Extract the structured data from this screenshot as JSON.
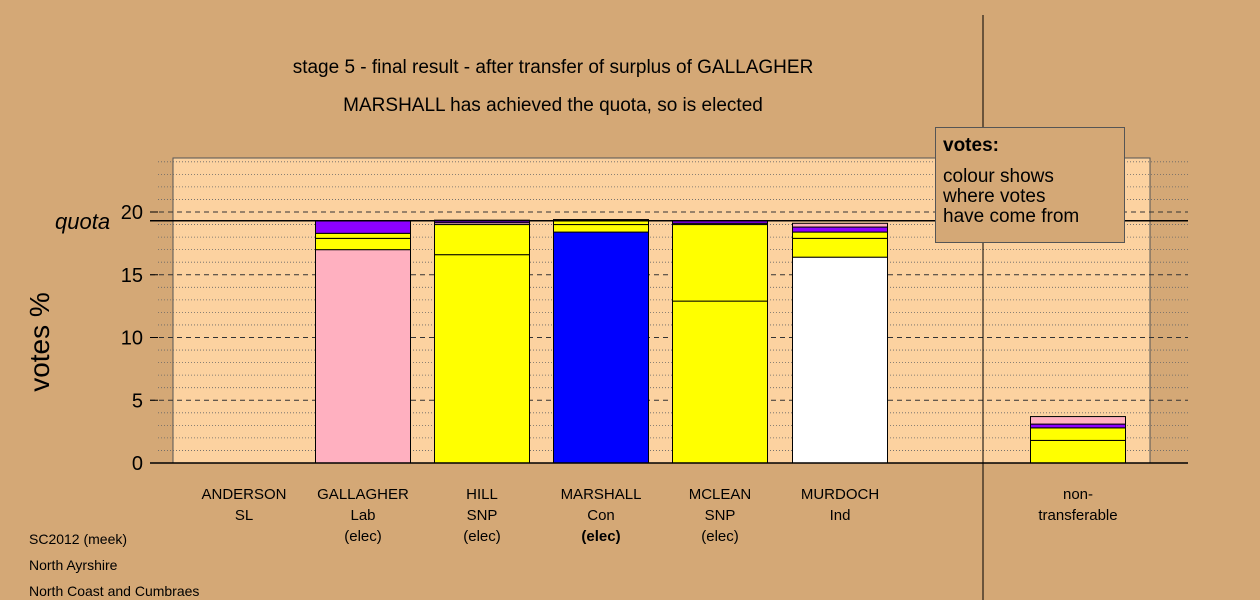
{
  "title_line1": "stage 5 - final result - after transfer of surplus of GALLAGHER",
  "title_line2": "MARSHALL has achieved the quota, so is elected",
  "ylabel": "votes %",
  "quota_label": "quota",
  "legend": {
    "title": "votes:",
    "line1": "colour shows",
    "line2": "where votes",
    "line3": "have come from"
  },
  "footer": [
    "SC2012 (meek)",
    "North Ayrshire",
    "North Coast and Cumbraes"
  ],
  "colors": {
    "background": "#d4a876",
    "plot_background": "#fcd2a0",
    "Lab": "#ffb0c0",
    "SNP": "#ffff00",
    "Con": "#0000ff",
    "Ind": "#ffffff",
    "SL": "#8c00ff"
  },
  "chart_data": {
    "type": "bar",
    "stacked": true,
    "ylim": [
      0,
      24
    ],
    "yticks": [
      0,
      5,
      10,
      15,
      20
    ],
    "quota": 19.3,
    "grid": true,
    "legend_position": "top-right",
    "candidates": [
      {
        "name": "ANDERSON",
        "party": "SL",
        "status": "",
        "segments": []
      },
      {
        "name": "GALLAGHER",
        "party": "Lab",
        "status": "(elec)",
        "segments": [
          {
            "value": 17.0,
            "color": "#ffb0c0"
          },
          {
            "value": 0.9,
            "color": "#ffff00"
          },
          {
            "value": 0.4,
            "color": "#ffff00"
          },
          {
            "value": 1.0,
            "color": "#8c00ff"
          }
        ]
      },
      {
        "name": "HILL",
        "party": "SNP",
        "status": "(elec)",
        "segments": [
          {
            "value": 16.6,
            "color": "#ffff00"
          },
          {
            "value": 2.4,
            "color": "#ffff00"
          },
          {
            "value": 0.15,
            "color": "#ffb0c0"
          },
          {
            "value": 0.2,
            "color": "#8c00ff"
          }
        ]
      },
      {
        "name": "MARSHALL",
        "party": "Con",
        "status": "(elec)",
        "bold_status": true,
        "segments": [
          {
            "value": 18.4,
            "color": "#0000ff"
          },
          {
            "value": 0.6,
            "color": "#ffff00"
          },
          {
            "value": 0.3,
            "color": "#ffff00"
          },
          {
            "value": 0.1,
            "color": "#ffb0c0"
          }
        ]
      },
      {
        "name": "MCLEAN",
        "party": "SNP",
        "status": "(elec)",
        "segments": [
          {
            "value": 12.9,
            "color": "#ffff00"
          },
          {
            "value": 6.1,
            "color": "#ffff00"
          },
          {
            "value": 0.1,
            "color": "#ffb0c0"
          },
          {
            "value": 0.2,
            "color": "#8c00ff"
          }
        ]
      },
      {
        "name": "MURDOCH",
        "party": "Ind",
        "status": "",
        "segments": [
          {
            "value": 16.4,
            "color": "#ffffff"
          },
          {
            "value": 1.5,
            "color": "#ffff00"
          },
          {
            "value": 0.5,
            "color": "#ffff00"
          },
          {
            "value": 0.4,
            "color": "#8c00ff"
          },
          {
            "value": 0.3,
            "color": "#ffb0c0"
          }
        ]
      },
      {
        "name": "non-",
        "party": "transferable",
        "status": "",
        "segments": [
          {
            "value": 1.8,
            "color": "#ffff00"
          },
          {
            "value": 1.0,
            "color": "#ffff00"
          },
          {
            "value": 0.3,
            "color": "#8c00ff"
          },
          {
            "value": 0.6,
            "color": "#ffb0c0"
          }
        ]
      }
    ]
  }
}
